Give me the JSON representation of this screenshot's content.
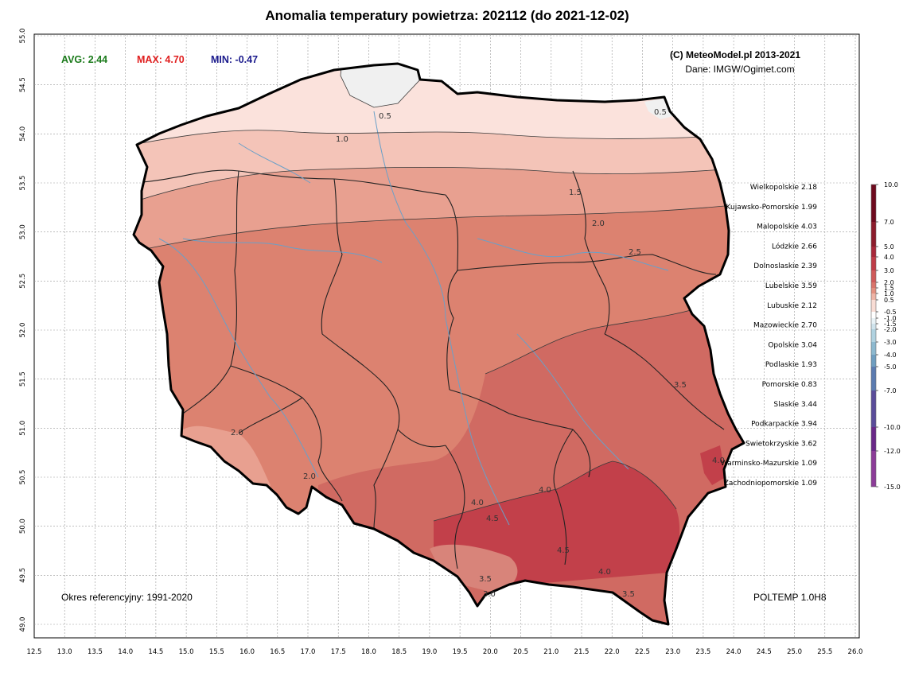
{
  "title": "Anomalia temperatury powietrza:  202112 (do 2021-12-02)",
  "stats": {
    "avg": "AVG: 2.44",
    "max": "MAX: 4.70",
    "min": "MIN: -0.47",
    "avg_color": "#1a7a1a",
    "max_color": "#e01e1e",
    "min_color": "#1a1a8c"
  },
  "credit": {
    "copyright": "(C) MeteoModel.pl 2013-2021",
    "source": "Dane: IMGW/Ogimet.com"
  },
  "reference_period": "Okres referencyjny: 1991-2020",
  "model": "POLTEMP 1.0H8",
  "x_ticks": [
    "12.5",
    "13.0",
    "13.5",
    "14.0",
    "14.5",
    "15.0",
    "15.5",
    "16.0",
    "16.5",
    "17.0",
    "17.5",
    "18.0",
    "18.5",
    "19.0",
    "19.5",
    "20.0",
    "20.5",
    "21.0",
    "21.5",
    "22.0",
    "22.5",
    "23.0",
    "23.5",
    "24.0",
    "24.5",
    "25.0",
    "25.5",
    "26.0"
  ],
  "y_ticks": [
    "55.0",
    "54.5",
    "54.0",
    "53.5",
    "53.0",
    "52.5",
    "52.0",
    "51.5",
    "51.0",
    "50.5",
    "50.0",
    "49.5",
    "49.0"
  ],
  "regions": [
    "Wielkopolskie 2.18",
    "Kujawsko-Pomorskie 1.99",
    "Malopolskie 4.03",
    "Lódzkie 2.66",
    "Dolnoslaskie 2.39",
    "Lubelskie 3.59",
    "Lubuskie 2.12",
    "Mazowieckie 2.70",
    "Opolskie 3.04",
    "Podlaskie 1.93",
    "Pomorskie 0.83",
    "Slaskie 3.44",
    "Podkarpackie 3.94",
    "Swietokrzyskie 3.62",
    "Warminsko-Mazurskie 1.09",
    "Zachodniopomorskie 1.09"
  ],
  "colorbar": {
    "labels": [
      "10.0",
      "7.0",
      "5.0",
      "4.0",
      "3.0",
      "2.0",
      "1.5",
      "1.0",
      "0.5",
      "-0.5",
      "-1.0",
      "-1.5",
      "-2.0",
      "-3.0",
      "-4.0",
      "-5.0",
      "-7.0",
      "-10.0",
      "-12.0",
      "-15.0"
    ],
    "colors": [
      "#6e0a1e",
      "#8c1c2c",
      "#a8283a",
      "#bf3c48",
      "#cf5a5a",
      "#d9746b",
      "#e39080",
      "#eeb4a6",
      "#f8dcd4",
      "#ffffff",
      "#e8f2f6",
      "#cfe3ec",
      "#b0d2e0",
      "#8db9cf",
      "#6f9ec0",
      "#5b7bb0",
      "#5a4c9a",
      "#6a2888",
      "#8c3c98",
      "#b47ab8"
    ]
  },
  "contours": [
    "0.5",
    "0.5",
    "1.0",
    "1.5",
    "2.0",
    "2.5",
    "2.0",
    "3.5",
    "4.0",
    "4.5",
    "3.5",
    "3.0",
    "4.0",
    "3.5",
    "4.0",
    "2.0",
    "4.0",
    "4.5"
  ],
  "map": {
    "ocean_color": "#ffffff",
    "band_colors": [
      "#f0f0f0",
      "#fbe2dc",
      "#f4c4b8",
      "#e8a090",
      "#dc8270",
      "#d06a62",
      "#c2404a",
      "#d8847a"
    ]
  }
}
